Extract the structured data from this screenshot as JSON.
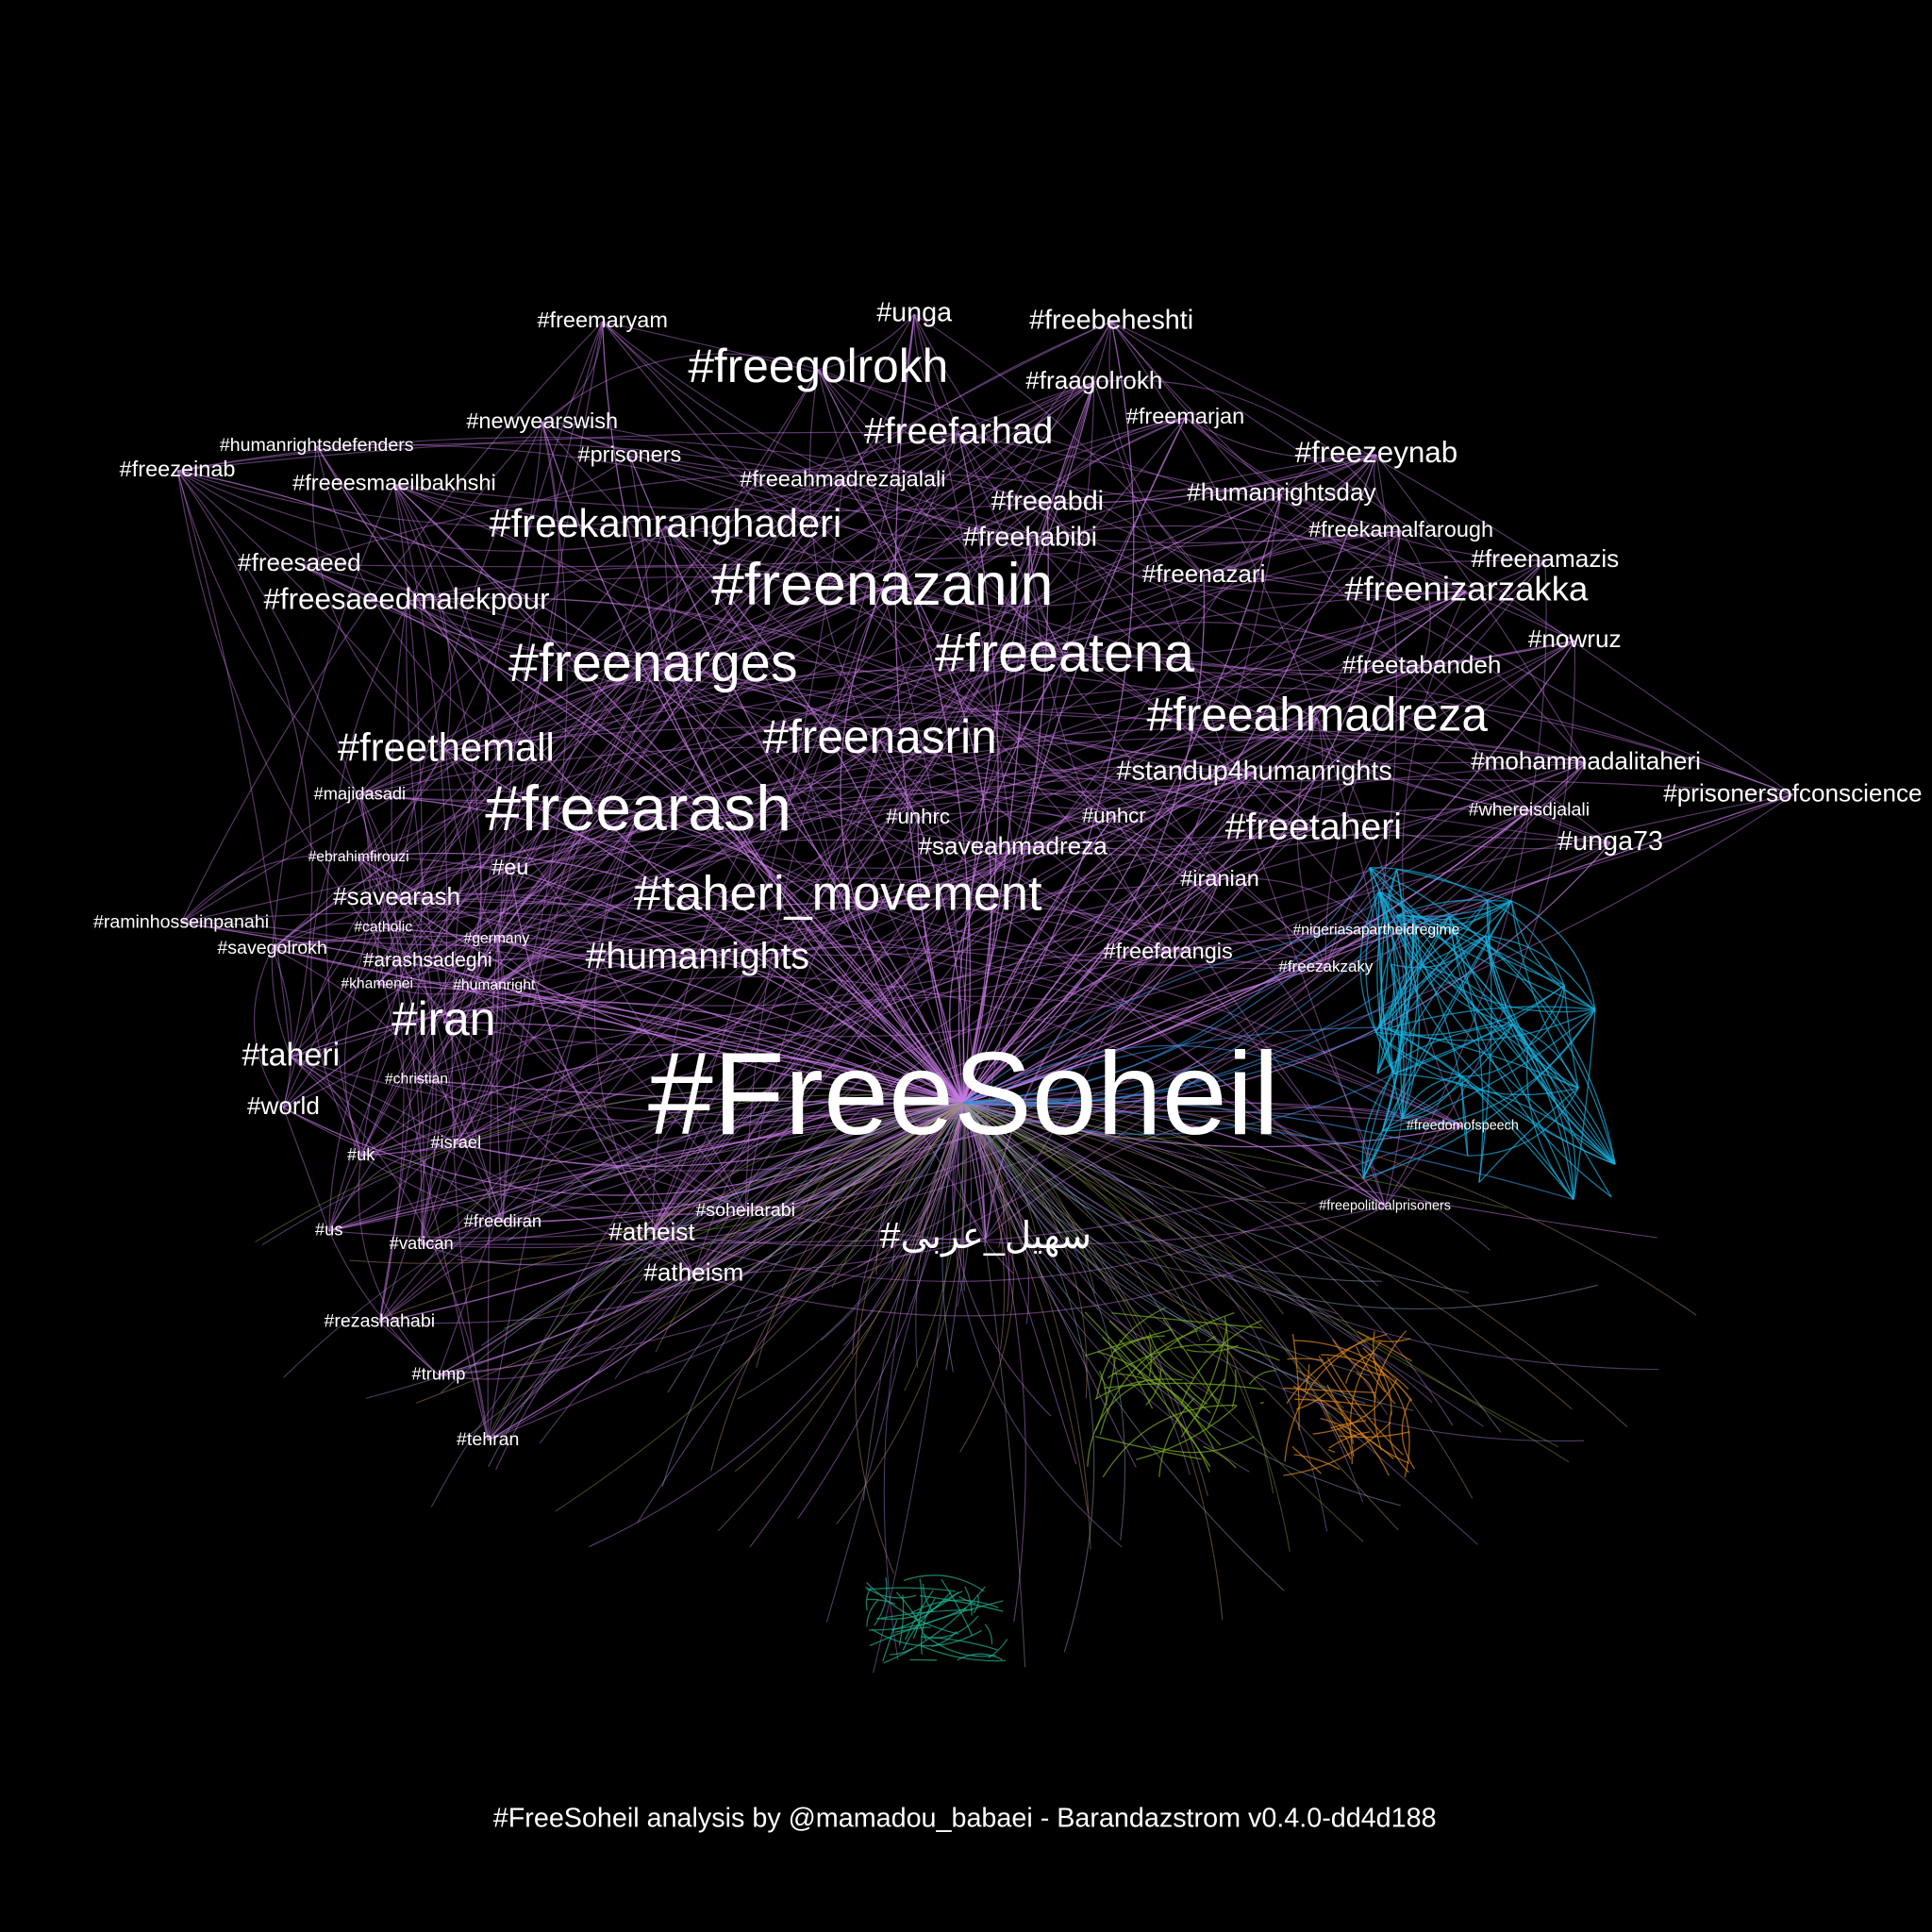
{
  "nodes": [
    {
      "label": "#FreeSoheil"
    },
    {
      "label": "#freenazanin"
    },
    {
      "label": "#freearash"
    },
    {
      "label": "#freenarges"
    },
    {
      "label": "#freeatena"
    },
    {
      "label": "#freenasrin"
    },
    {
      "label": "#freeahmadreza"
    },
    {
      "label": "#taheri_movement"
    },
    {
      "label": "#freegolrokh"
    },
    {
      "label": "#freekamranghaderi"
    },
    {
      "label": "#freethemall"
    },
    {
      "label": "#freefarhad"
    },
    {
      "label": "#iran"
    },
    {
      "label": "#humanrights"
    },
    {
      "label": "#freetaheri"
    },
    {
      "label": "#freenizarzakka"
    },
    {
      "label": "#freezeynab"
    },
    {
      "label": "#freesaeedmalekpour"
    },
    {
      "label": "#standup4humanrights"
    },
    {
      "label": "#mohammadalitaheri"
    },
    {
      "label": "#prisonersofconscience"
    },
    {
      "label": "#unga73"
    },
    {
      "label": "#nowruz"
    },
    {
      "label": "#freetabandeh"
    },
    {
      "label": "#freenamazis"
    },
    {
      "label": "#freekamalfarough"
    },
    {
      "label": "#humanrightsday"
    },
    {
      "label": "#freeabdi"
    },
    {
      "label": "#freehabibi"
    },
    {
      "label": "#freenazari"
    },
    {
      "label": "#freeahmadrezajalali"
    },
    {
      "label": "#freemarjan"
    },
    {
      "label": "#fraagolrokh"
    },
    {
      "label": "#freebeheshti"
    },
    {
      "label": "#unga"
    },
    {
      "label": "#freemaryam"
    },
    {
      "label": "#newyearswish"
    },
    {
      "label": "#prisoners"
    },
    {
      "label": "#humanrightsdefenders"
    },
    {
      "label": "#freezeinab"
    },
    {
      "label": "#freeesmaeilbakhshi"
    },
    {
      "label": "#freesaeed"
    },
    {
      "label": "#taheri"
    },
    {
      "label": "#world"
    },
    {
      "label": "#savearash"
    },
    {
      "label": "#raminhosseinpanahi"
    },
    {
      "label": "#savegolrokh"
    },
    {
      "label": "#arashsadeghi"
    },
    {
      "label": "#freefarangis"
    },
    {
      "label": "#iranian"
    },
    {
      "label": "#saveahmadreza"
    },
    {
      "label": "#unhrc"
    },
    {
      "label": "#unhcr"
    },
    {
      "label": "#whereisdjalali"
    },
    {
      "label": "#atheist"
    },
    {
      "label": "#atheism"
    },
    {
      "label": "#soheilarabi"
    },
    {
      "label": "#سهیل_عربی"
    },
    {
      "label": "#freediran"
    },
    {
      "label": "#rezashahabi"
    },
    {
      "label": "#tehran"
    },
    {
      "label": "#trump"
    },
    {
      "label": "#us"
    },
    {
      "label": "#vatican"
    },
    {
      "label": "#israel"
    },
    {
      "label": "#uk"
    },
    {
      "label": "#christian"
    },
    {
      "label": "#majidasadi"
    },
    {
      "label": "#eu"
    },
    {
      "label": "#khamenei"
    },
    {
      "label": "#humanright"
    },
    {
      "label": "#germany"
    },
    {
      "label": "#catholic"
    },
    {
      "label": "#ebrahimfirouzi"
    },
    {
      "label": "#freezakzaky"
    },
    {
      "label": "#freedomofspeech"
    },
    {
      "label": "#freepoliticalprisoners"
    },
    {
      "label": "#nigeriasapartheidregime"
    }
  ],
  "footer": "#FreeSoheil analysis by @mamadou_babaei - Barandazstrom v0.4.0-dd4d188"
}
